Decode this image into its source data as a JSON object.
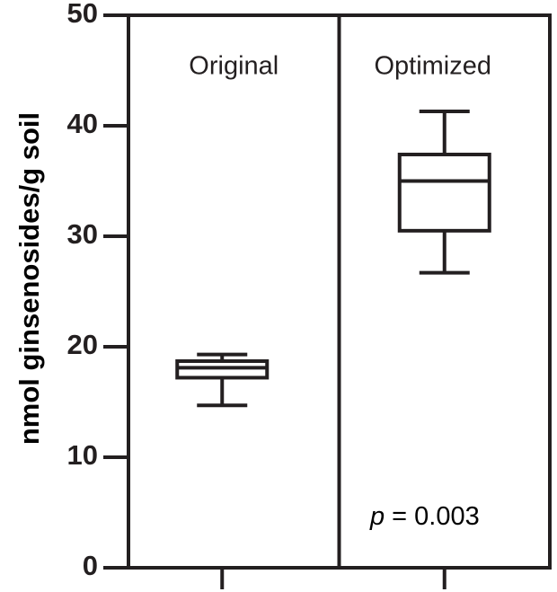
{
  "chart_data": {
    "type": "box",
    "y_label": "nmol ginsenosides/g soil",
    "categories": [
      "Original",
      "Optimized"
    ],
    "min": [
      14.7,
      26.7
    ],
    "q1": [
      17.2,
      30.5
    ],
    "median": [
      18.1,
      35.0
    ],
    "q3": [
      18.7,
      37.4
    ],
    "max": [
      19.3,
      41.3
    ],
    "color": "#231f20",
    "ylim": [
      0,
      50
    ],
    "yticks": [
      0,
      10,
      20,
      30,
      40,
      50
    ],
    "annotation": {
      "symbol": "p",
      "text": "= 0.003"
    }
  }
}
